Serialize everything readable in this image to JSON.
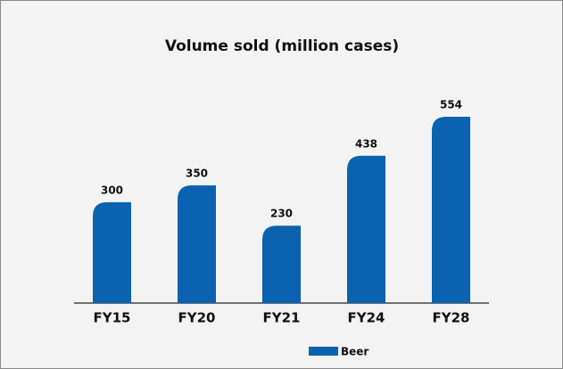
{
  "chart_data": {
    "type": "bar",
    "title": "Volume sold (million cases)",
    "categories": [
      "FY15",
      "FY20",
      "FY21",
      "FY24",
      "FY28"
    ],
    "series": [
      {
        "name": "Beer",
        "color": "#0a62b0",
        "values": [
          300,
          350,
          230,
          438,
          554
        ]
      }
    ]
  }
}
